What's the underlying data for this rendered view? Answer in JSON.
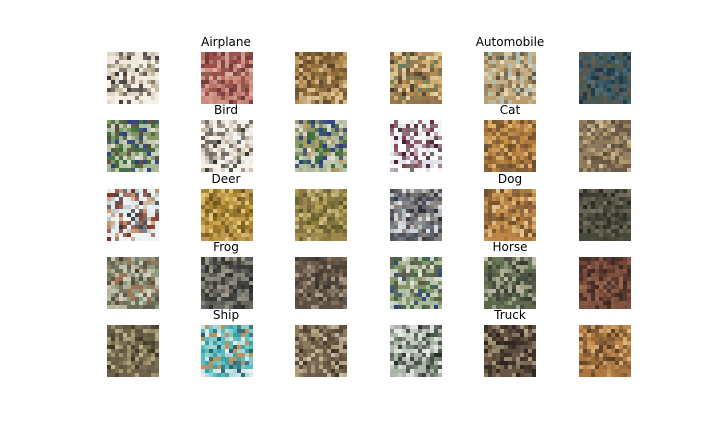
{
  "figure": {
    "groups": [
      {
        "title": "Airplane"
      },
      {
        "title": "Automobile"
      },
      {
        "title": "Bird"
      },
      {
        "title": "Cat"
      },
      {
        "title": "Deer"
      },
      {
        "title": "Dog"
      },
      {
        "title": "Frog"
      },
      {
        "title": "Horse"
      },
      {
        "title": "Ship"
      },
      {
        "title": "Truck"
      }
    ],
    "thumbnails": [
      {
        "palette": [
          "#efe9dc",
          "#d9d2c2",
          "#7a6a58",
          "#3b3530",
          "#b9a98c",
          "#f6f3ea"
        ],
        "background": "#ece6d8"
      },
      {
        "palette": [
          "#9b4a4a",
          "#c27a6e",
          "#6b3a3a",
          "#e0b6a8",
          "#8a5c4a",
          "#d49a8a"
        ],
        "background": "#a65a55"
      },
      {
        "palette": [
          "#8a6a3a",
          "#b58a4a",
          "#5a4628",
          "#c9a56a",
          "#7a5530",
          "#e0c89a"
        ],
        "background": "#9a7845"
      },
      {
        "palette": [
          "#b08a52",
          "#d6b478",
          "#4a3a2a",
          "#6a7a5a",
          "#e8d6a8",
          "#8a6a44"
        ],
        "background": "#b8955c"
      },
      {
        "palette": [
          "#c8b088",
          "#8a7a5a",
          "#e6dcc0",
          "#5a5040",
          "#a8c8c8",
          "#b89868"
        ],
        "background": "#c4ab82"
      },
      {
        "palette": [
          "#2e4a5a",
          "#3e6474",
          "#5a7070",
          "#6a5a40",
          "#20343e",
          "#4a5a50"
        ],
        "background": "#34505e"
      },
      {
        "palette": [
          "#3a6a3a",
          "#e8e4dc",
          "#2a3a8a",
          "#8a9a6a",
          "#5a4a3a",
          "#c8d0b8"
        ],
        "background": "#6a8a5a"
      },
      {
        "palette": [
          "#f0ece4",
          "#2a2622",
          "#d8d0c4",
          "#6a625a",
          "#b8aa98",
          "#f8f6f2"
        ],
        "background": "#ece8e0"
      },
      {
        "palette": [
          "#3a6a3a",
          "#e8e4dc",
          "#2a3a8a",
          "#8a9a6a",
          "#c0a070",
          "#c8d0b8"
        ],
        "background": "#7a8a5a"
      },
      {
        "palette": [
          "#f4f6f8",
          "#3a1a2a",
          "#6a2a3a",
          "#dcdfe4",
          "#a08090",
          "#ffffff"
        ],
        "background": "#eef0f4"
      },
      {
        "palette": [
          "#9a6a34",
          "#c8944a",
          "#6a4a28",
          "#e0b870",
          "#b07a40",
          "#7a5a3a"
        ],
        "background": "#a6753c"
      },
      {
        "palette": [
          "#8a7a5a",
          "#b8a070",
          "#5a4a38",
          "#d0c0a0",
          "#9a8060",
          "#6a5a48"
        ],
        "background": "#8e7c5c"
      },
      {
        "palette": [
          "#e4ecec",
          "#7a2a1a",
          "#3a3a3a",
          "#b8c8c8",
          "#c88a5a",
          "#f2f6f6"
        ],
        "background": "#dfe8e8"
      },
      {
        "palette": [
          "#a8842a",
          "#d0aa4a",
          "#6a5020",
          "#e8cc7a",
          "#8a6a30",
          "#c09a5a"
        ],
        "background": "#b08c38"
      },
      {
        "palette": [
          "#8a7a3a",
          "#b8a45a",
          "#5a5a2a",
          "#d0c08a",
          "#7a6a4a",
          "#a08a50"
        ],
        "background": "#928040"
      },
      {
        "palette": [
          "#b8c0c4",
          "#2a2a30",
          "#6a6a70",
          "#e0e4e8",
          "#8a7a6a",
          "#4a4a52"
        ],
        "background": "#aeb6bc"
      },
      {
        "palette": [
          "#a8783a",
          "#d09c5a",
          "#6a4a28",
          "#e8c890",
          "#8a6040",
          "#c08a4a"
        ],
        "background": "#ac7c40"
      },
      {
        "palette": [
          "#3a3a2e",
          "#5a5442",
          "#6a6a5a",
          "#2a2a22",
          "#7a7260",
          "#4a4a3c"
        ],
        "background": "#42423a"
      },
      {
        "palette": [
          "#8a9a7a",
          "#c0b8a0",
          "#4a3a30",
          "#a06a4a",
          "#d8d8c8",
          "#6a6a5a"
        ],
        "background": "#909a80"
      },
      {
        "palette": [
          "#5a5a5a",
          "#3a3a3a",
          "#8a8a80",
          "#2a2a2a",
          "#a8a090",
          "#6a6a60"
        ],
        "background": "#5c5c58"
      },
      {
        "palette": [
          "#6a5a4a",
          "#4a4038",
          "#8a7a68",
          "#3a342e",
          "#b0a08a",
          "#5a4e42"
        ],
        "background": "#6c5c4c"
      },
      {
        "palette": [
          "#3a6a3a",
          "#e8e4dc",
          "#2a3a8a",
          "#8a9a6a",
          "#5a5a4a",
          "#c8d0b8"
        ],
        "background": "#6e8a60"
      },
      {
        "palette": [
          "#6a7a5a",
          "#3a3a32",
          "#a8aa90",
          "#4a4a40",
          "#c8c0a8",
          "#5a6448"
        ],
        "background": "#667258"
      },
      {
        "palette": [
          "#5a3a2e",
          "#7a4a3a",
          "#3a2822",
          "#a06a50",
          "#4a3028",
          "#8a5a46"
        ],
        "background": "#5e3e32"
      },
      {
        "palette": [
          "#7a7050",
          "#3a3428",
          "#a89a70",
          "#5a5440",
          "#c8b890",
          "#6a6048"
        ],
        "background": "#7a7052"
      },
      {
        "palette": [
          "#3aa0a4",
          "#a0d8d8",
          "#2a5a6a",
          "#d88a4a",
          "#5ac0c4",
          "#e8f0f0"
        ],
        "background": "#52acb0"
      },
      {
        "palette": [
          "#8a7a5a",
          "#5a4a3a",
          "#b8a888",
          "#3a3228",
          "#d0c4a8",
          "#6a5a48"
        ],
        "background": "#8c7c5e"
      },
      {
        "palette": [
          "#c8ccc4",
          "#2a2e2a",
          "#6a7a6a",
          "#e8ece8",
          "#4a524a",
          "#a8b0a8"
        ],
        "background": "#bcc2ba"
      },
      {
        "palette": [
          "#5a4a3a",
          "#2a2420",
          "#8a7860",
          "#3a302a",
          "#b8a888",
          "#6a5848"
        ],
        "background": "#5c4c3c"
      },
      {
        "palette": [
          "#9a6a3a",
          "#c89050",
          "#5a3e28",
          "#e0b878",
          "#7a5a38",
          "#b07a44"
        ],
        "background": "#9e6e3e"
      }
    ]
  }
}
